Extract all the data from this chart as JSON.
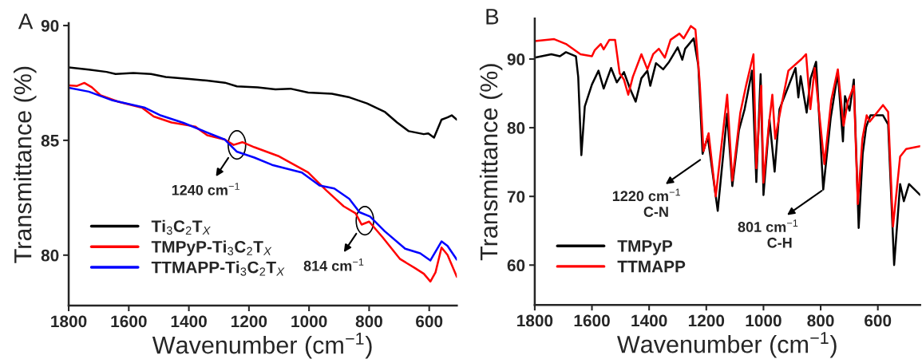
{
  "chart_data": [
    {
      "type": "line",
      "title": "A",
      "xlabel": "Wavenumber (cm$^{−1}$)",
      "ylabel": "Transmittance (%)",
      "xlim": [
        1800,
        508
      ],
      "xticks": [
        1800,
        1600,
        1400,
        1200,
        1000,
        800,
        600
      ],
      "ylim": [
        77.8,
        90.1
      ],
      "yticks": [
        80,
        85,
        90
      ],
      "grid": false,
      "legend": "bottom left",
      "marker": "none",
      "line_style": "solid",
      "series": [
        {
          "name": "Ti$_{3}$C$_{2}$T$_{X}$",
          "color": "#000000",
          "x": [
            1800,
            1733,
            1674,
            1644,
            1585,
            1526,
            1477,
            1398,
            1339,
            1280,
            1240,
            1171,
            1112,
            1062,
            1003,
            924,
            865,
            807,
            747,
            707,
            668,
            618,
            603,
            584,
            559,
            539,
            525,
            508
          ],
          "values": [
            88.18,
            88.08,
            87.98,
            87.89,
            87.93,
            87.89,
            87.76,
            87.67,
            87.6,
            87.51,
            87.35,
            87.31,
            87.22,
            87.25,
            87.08,
            87.03,
            86.87,
            86.61,
            86.23,
            85.78,
            85.4,
            85.27,
            85.3,
            85.12,
            85.9,
            86.0,
            86.09,
            85.9
          ]
        },
        {
          "name": "TMPyP-Ti$_{3}$C$_{2}$T$_{X}$",
          "color": "#ff0000",
          "x": [
            1800,
            1772,
            1748,
            1723,
            1694,
            1635,
            1556,
            1517,
            1458,
            1379,
            1339,
            1280,
            1251,
            1222,
            1182,
            1103,
            1003,
            944,
            885,
            845,
            825,
            800,
            756,
            697,
            648,
            618,
            596,
            579,
            559,
            539,
            508
          ],
          "values": [
            87.39,
            87.37,
            87.5,
            87.31,
            86.96,
            86.68,
            86.42,
            86.04,
            85.78,
            85.6,
            85.22,
            85.03,
            84.8,
            84.92,
            84.7,
            84.32,
            83.6,
            82.84,
            82.13,
            81.82,
            81.33,
            81.46,
            80.79,
            79.83,
            79.44,
            79.19,
            78.85,
            79.25,
            80.33,
            80.01,
            79.05
          ]
        },
        {
          "name": "TTMAPP-Ti$_{3}$C$_{2}$T$_{X}$",
          "color": "#0000ff",
          "x": [
            1800,
            1733,
            1654,
            1546,
            1497,
            1418,
            1339,
            1280,
            1241,
            1182,
            1123,
            1024,
            965,
            916,
            866,
            832,
            797,
            748,
            680,
            630,
            596,
            559,
            539,
            508
          ],
          "values": [
            87.29,
            87.12,
            86.74,
            86.42,
            86.1,
            85.76,
            85.34,
            85.03,
            84.51,
            84.25,
            83.93,
            83.6,
            83.03,
            82.9,
            82.45,
            81.87,
            81.68,
            81.04,
            80.28,
            80.08,
            79.77,
            80.6,
            80.4,
            79.8
          ]
        }
      ],
      "annotations": [
        {
          "text": "1240 cm$^{−1}$",
          "x": 1240,
          "y": 84.8
        },
        {
          "text": "814 cm$^{−1}$",
          "x": 814,
          "y": 81.5
        }
      ]
    },
    {
      "type": "line",
      "title": "B",
      "xlabel": "Wavenumber (cm$^{−1}$)",
      "ylabel": "Transmittance (%)",
      "xlim": [
        1800,
        452
      ],
      "xticks": [
        1800,
        1600,
        1400,
        1200,
        1000,
        800,
        600
      ],
      "ylim": [
        54.2,
        95.9
      ],
      "yticks": [
        60,
        70,
        80,
        90
      ],
      "grid": false,
      "legend": "bottom left",
      "marker": "none",
      "line_style": "solid",
      "series": [
        {
          "name": "TMPyP",
          "color": "#000000",
          "x": [
            1800,
            1742,
            1712,
            1691,
            1656,
            1648,
            1637,
            1625,
            1600,
            1577,
            1559,
            1533,
            1513,
            1488,
            1467,
            1447,
            1427,
            1406,
            1396,
            1376,
            1351,
            1330,
            1300,
            1284,
            1274,
            1244,
            1228,
            1213,
            1195,
            1160,
            1127,
            1109,
            1086,
            1066,
            1040,
            1025,
            1010,
            1000,
            979,
            961,
            944,
            888,
            878,
            870,
            849,
            835,
            816,
            791,
            765,
            740,
            722,
            715,
            699,
            684,
            667,
            653,
            641,
            626,
            582,
            564,
            543,
            522,
            509,
            491,
            452
          ],
          "values": [
            90.2,
            90.7,
            90.4,
            91.0,
            90.4,
            87.4,
            76.0,
            83.1,
            86.3,
            88.3,
            85.7,
            88.7,
            86.6,
            88.1,
            85.7,
            83.8,
            87.2,
            88.3,
            86.1,
            89.4,
            88.5,
            89.6,
            91.7,
            89.9,
            91.5,
            93.0,
            89.1,
            76.2,
            78.7,
            67.9,
            82.0,
            71.5,
            79.6,
            82.7,
            88.3,
            72.1,
            87.8,
            70.2,
            81.2,
            73.6,
            82.7,
            88.7,
            84.4,
            87.5,
            82.2,
            87.2,
            89.6,
            71.0,
            81.4,
            88.0,
            78.0,
            84.6,
            82.5,
            87.0,
            65.4,
            76.2,
            80.1,
            81.8,
            81.8,
            80.5,
            60.0,
            71.8,
            69.3,
            71.8,
            70.2
          ]
        },
        {
          "name": "TTMAPP",
          "color": "#ff0000",
          "x": [
            1800,
            1732,
            1691,
            1640,
            1600,
            1590,
            1569,
            1559,
            1539,
            1519,
            1503,
            1488,
            1473,
            1457,
            1427,
            1406,
            1386,
            1366,
            1345,
            1325,
            1294,
            1279,
            1254,
            1238,
            1223,
            1210,
            1192,
            1167,
            1127,
            1109,
            1081,
            1060,
            1035,
            1025,
            1008,
            1000,
            981,
            969,
            959,
            938,
            913,
            867,
            851,
            836,
            821,
            787,
            763,
            740,
            720,
            705,
            684,
            670,
            654,
            639,
            628,
            582,
            564,
            547,
            522,
            501,
            452
          ],
          "values": [
            92.6,
            92.9,
            92.2,
            90.7,
            90.4,
            91.3,
            92.2,
            91.4,
            92.8,
            92.8,
            87.9,
            87.0,
            84.8,
            87.4,
            90.7,
            88.5,
            90.7,
            91.5,
            90.2,
            92.8,
            93.7,
            93.0,
            94.8,
            94.3,
            86.6,
            76.6,
            79.2,
            70.0,
            84.8,
            72.3,
            82.2,
            86.3,
            90.7,
            74.1,
            86.1,
            72.0,
            80.5,
            84.8,
            78.4,
            83.1,
            88.3,
            90.0,
            90.7,
            82.7,
            88.7,
            74.7,
            84.0,
            88.5,
            80.3,
            83.8,
            86.1,
            68.9,
            78.4,
            81.8,
            80.9,
            83.3,
            82.3,
            65.6,
            75.8,
            76.9,
            77.3
          ]
        }
      ],
      "annotations": [
        {
          "text": "1220 cm$^{−1}$",
          "x": 1215,
          "y": 75.5
        },
        "C-N",
        {
          "text": "801 cm$^{−1}$",
          "x": 790,
          "y": 71.0
        },
        "C-H"
      ]
    }
  ]
}
